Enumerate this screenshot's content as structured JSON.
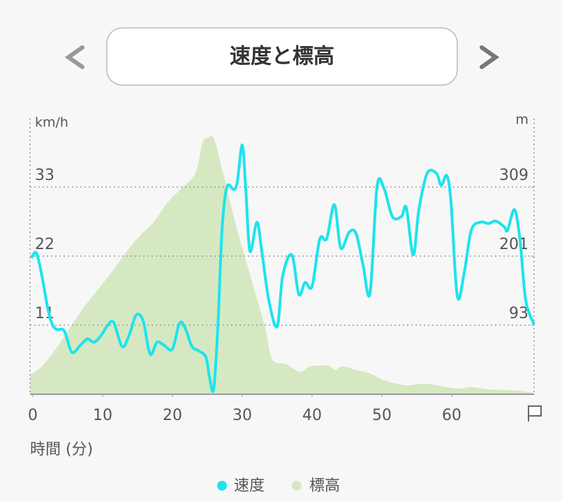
{
  "chart_data": {
    "type": "line",
    "title": "速度と標高",
    "xlabel": "時間 (分)",
    "ylabel": "km/h",
    "y2label": "m",
    "xlim": [
      -0.4,
      71.8
    ],
    "xticks": [
      0,
      10,
      20,
      30,
      40,
      50,
      60
    ],
    "ylim": [
      0,
      43.9
    ],
    "yticks": [
      11,
      22,
      33
    ],
    "y2lim": [
      -15,
      416
    ],
    "y2ticks": [
      93,
      201,
      309
    ],
    "grid": true,
    "series": [
      {
        "name": "速度",
        "color": "#1ee3ee",
        "type": "line",
        "x": [
          -0.2,
          0.5,
          1.3,
          2.1,
          2.8,
          3.5,
          4.5,
          5.6,
          6.8,
          7.8,
          8.8,
          9.8,
          10.8,
          11.6,
          12.8,
          13.8,
          14.8,
          15.8,
          16.8,
          17.8,
          18.8,
          20,
          21,
          21.8,
          22.8,
          23.8,
          24.8,
          25.3,
          25.9,
          26.5,
          27.1,
          27.8,
          28.8,
          29.3,
          30,
          30.5,
          31.1,
          32.1,
          32.8,
          33.8,
          35,
          35.8,
          37.1,
          38.1,
          39,
          40,
          41.1,
          42.1,
          43.2,
          44.1,
          45.3,
          46.3,
          47.3,
          48.3,
          49.3,
          50.3,
          51.5,
          52.8,
          53.5,
          54.5,
          55.3,
          56.5,
          57.8,
          58.5,
          59.3,
          59.9,
          60.8,
          61.8,
          62.8,
          64.1,
          65.3,
          66.3,
          67.5,
          68,
          69,
          69.8,
          70.6,
          71.8
        ],
        "values": [
          21.7,
          22.5,
          18.9,
          13.9,
          11.1,
          10.3,
          10.1,
          6.7,
          7.8,
          8.8,
          8.3,
          9.4,
          11.1,
          11.4,
          7.6,
          9.4,
          12.6,
          11.7,
          6.4,
          8.3,
          7.8,
          7.2,
          11.3,
          10.6,
          7.6,
          6.9,
          5.9,
          2.8,
          0.8,
          10.6,
          26.1,
          33,
          32.6,
          33.9,
          39.7,
          32.8,
          22.8,
          27.4,
          22.8,
          15,
          10.8,
          18.9,
          22.2,
          15.9,
          17.8,
          17.2,
          24.7,
          24.8,
          30.2,
          23.3,
          25.8,
          25.6,
          20.6,
          16.1,
          33,
          32.8,
          28.3,
          28.3,
          29.7,
          22.2,
          29.4,
          35.2,
          35.2,
          33.3,
          34.8,
          30.6,
          15.6,
          19.4,
          26.1,
          27.4,
          27.2,
          27.6,
          26.7,
          26.1,
          29.4,
          24.4,
          15,
          11.1
        ]
      },
      {
        "name": "標高",
        "color": "#d6e8c2",
        "type": "area",
        "axis": "y2",
        "x": [
          -0.4,
          1.3,
          3.3,
          5.3,
          7.3,
          9.3,
          11.3,
          13.3,
          15.3,
          17.3,
          19.3,
          21.3,
          23.3,
          24.3,
          25.1,
          26,
          27.3,
          29.3,
          31.3,
          33.3,
          34.3,
          36.3,
          38.3,
          39.8,
          42.3,
          43.3,
          44.3,
          46.3,
          48.3,
          50.3,
          53.3,
          56.3,
          59.3,
          61.3,
          62.8,
          65.3,
          69.3,
          71.8
        ],
        "values": [
          14.5,
          28.6,
          56,
          88.6,
          121,
          148.6,
          176,
          206,
          232.6,
          254,
          285,
          307,
          331,
          378,
          386,
          383,
          328.6,
          241,
          165,
          88.6,
          39.5,
          32,
          20,
          28.6,
          29.7,
          23,
          28.6,
          23,
          17.7,
          6.8,
          -0.8,
          1.4,
          -4,
          -6,
          -4,
          -7.4,
          -9.5,
          -12.8
        ]
      }
    ]
  }
}
